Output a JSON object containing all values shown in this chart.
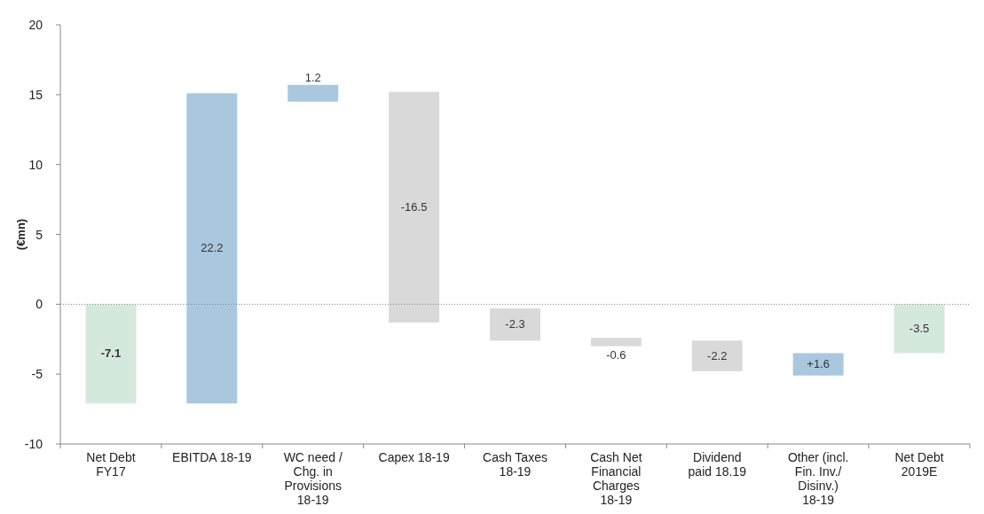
{
  "chart_data": {
    "type": "bar",
    "ylabel": "(€mn)",
    "categories": [
      "Net Debt FY17",
      "EBITDA 18-19",
      "WC need / Chg. in Provisions 18-19",
      "Capex 18-19",
      "Cash Taxes 18-19",
      "Cash Net Financial Charges 18-19",
      "Dividend paid 18.19",
      "Other (incl. Fin. Inv./ Disinv.) 18-19",
      "Net Debt 2019E"
    ],
    "values": [
      -7.1,
      22.2,
      1.2,
      -16.5,
      -2.3,
      -0.6,
      -2.2,
      1.6,
      -3.5
    ],
    "base": [
      0,
      -7.1,
      14.5,
      15.2,
      -0.3,
      -2.4,
      -2.6,
      -5.1,
      0
    ],
    "value_labels": [
      "-7.1",
      "22.2",
      "1.2",
      "-16.5",
      "-2.3",
      "-0.6",
      "-2.2",
      "+1.6",
      "-3.5"
    ],
    "colors": [
      "#d5e8dc",
      "#a9c8e0",
      "#a9c8e0",
      "#d9d9d9",
      "#d9d9d9",
      "#d9d9d9",
      "#d9d9d9",
      "#a9c8e0",
      "#d5e8dc"
    ],
    "ylim": [
      -10,
      20
    ],
    "yticks": [
      -10,
      -5,
      0,
      5,
      10,
      15,
      20
    ],
    "grid": false,
    "ref_lines": [
      {
        "axis": "y",
        "value": 0,
        "color": "#808080",
        "line_style": "dotted"
      }
    ]
  }
}
